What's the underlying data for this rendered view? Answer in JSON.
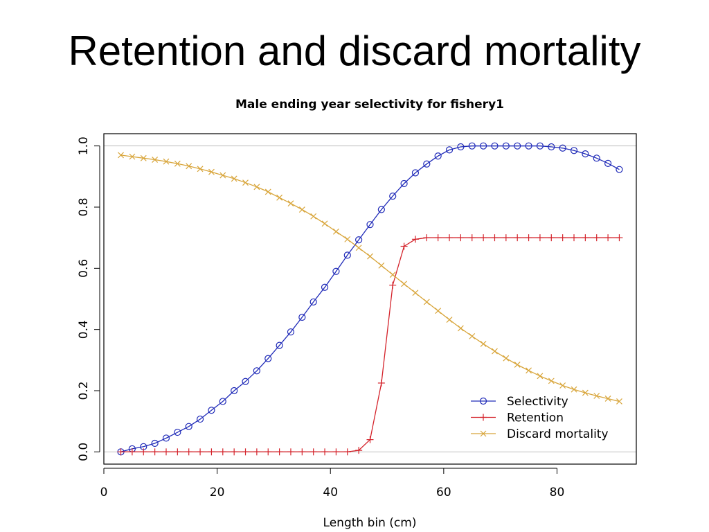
{
  "slide": {
    "title": "Retention and discard mortality"
  },
  "colors": {
    "selectivity": "#1f2ab8",
    "retention": "#d4222a",
    "discard": "#d8a53a",
    "reference": "#bebebe"
  },
  "chart_data": {
    "type": "line",
    "title": "Male ending year selectivity for fishery1",
    "xlabel": "Length bin (cm)",
    "ylabel": "",
    "xlim": [
      0,
      94
    ],
    "ylim": [
      -0.04,
      1.04
    ],
    "x_ticks": [
      0,
      20,
      40,
      60,
      80
    ],
    "y_ticks": [
      0.0,
      0.2,
      0.4,
      0.6,
      0.8,
      1.0
    ],
    "y_tick_labels": [
      "0.0",
      "0.2",
      "0.4",
      "0.6",
      "0.8",
      "1.0"
    ],
    "reference_lines": [
      0,
      1
    ],
    "legend_position": "bottom-right",
    "x": [
      3,
      5,
      7,
      9,
      11,
      13,
      15,
      17,
      19,
      21,
      23,
      25,
      27,
      29,
      31,
      33,
      35,
      37,
      39,
      41,
      43,
      45,
      47,
      49,
      51,
      53,
      55,
      57,
      59,
      61,
      63,
      65,
      67,
      69,
      71,
      73,
      75,
      77,
      79,
      81,
      83,
      85,
      87,
      89,
      91
    ],
    "series": [
      {
        "name": "Selectivity",
        "marker": "circle",
        "color": "#1f2ab8",
        "values": [
          0.0,
          0.01,
          0.017,
          0.028,
          0.045,
          0.064,
          0.083,
          0.107,
          0.136,
          0.165,
          0.2,
          0.23,
          0.265,
          0.305,
          0.348,
          0.392,
          0.44,
          0.49,
          0.538,
          0.59,
          0.643,
          0.693,
          0.743,
          0.792,
          0.836,
          0.877,
          0.912,
          0.941,
          0.967,
          0.987,
          0.997,
          1.0,
          1.0,
          1.0,
          1.0,
          1.0,
          1.0,
          1.0,
          0.997,
          0.993,
          0.985,
          0.974,
          0.96,
          0.943,
          0.923
        ]
      },
      {
        "name": "Retention",
        "marker": "plus",
        "color": "#d4222a",
        "values": [
          0,
          0,
          0,
          0,
          0,
          0,
          0,
          0,
          0,
          0,
          0,
          0,
          0,
          0,
          0,
          0,
          0,
          0,
          0,
          0,
          0,
          0.005,
          0.04,
          0.225,
          0.545,
          0.672,
          0.695,
          0.7,
          0.7,
          0.7,
          0.7,
          0.7,
          0.7,
          0.7,
          0.7,
          0.7,
          0.7,
          0.7,
          0.7,
          0.7,
          0.7,
          0.7,
          0.7,
          0.7,
          0.7
        ]
      },
      {
        "name": "Discard mortality",
        "marker": "x",
        "color": "#d8a53a",
        "values": [
          0.97,
          0.965,
          0.96,
          0.955,
          0.949,
          0.942,
          0.934,
          0.925,
          0.915,
          0.904,
          0.893,
          0.88,
          0.866,
          0.85,
          0.831,
          0.812,
          0.792,
          0.77,
          0.746,
          0.72,
          0.695,
          0.667,
          0.639,
          0.609,
          0.579,
          0.549,
          0.52,
          0.49,
          0.461,
          0.432,
          0.404,
          0.378,
          0.353,
          0.329,
          0.306,
          0.285,
          0.266,
          0.248,
          0.232,
          0.217,
          0.204,
          0.193,
          0.183,
          0.174,
          0.165
        ]
      }
    ]
  }
}
